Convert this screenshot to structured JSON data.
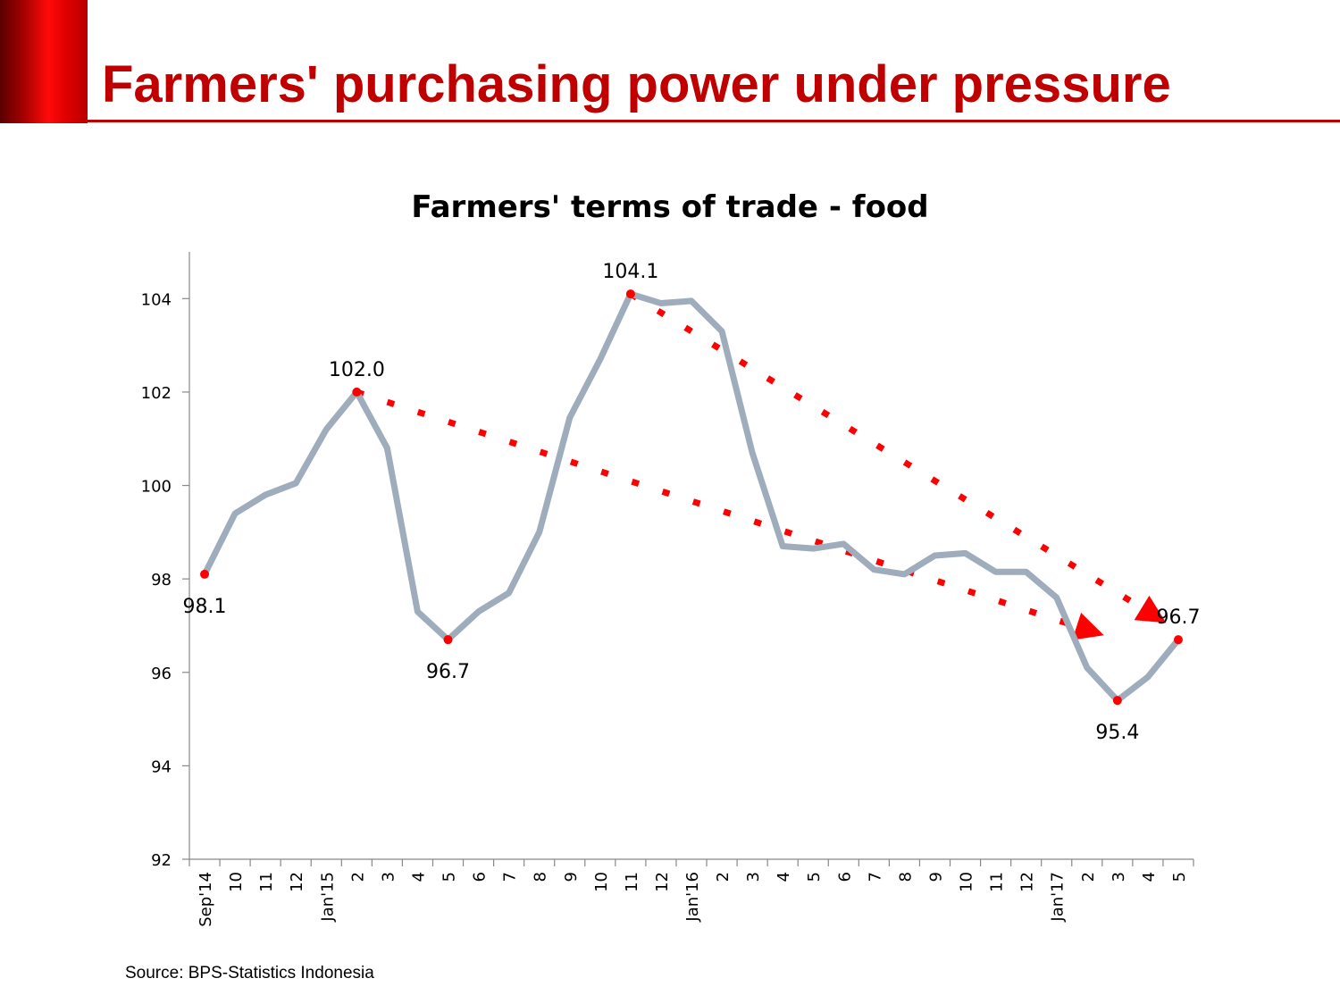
{
  "slide": {
    "title": "Farmers' purchasing power under pressure",
    "source": "Source: BPS-Statistics Indonesia",
    "accent_color": "#c00000"
  },
  "chart_data": {
    "type": "line",
    "title": "Farmers' terms of trade - food",
    "xlabel": "",
    "ylabel": "",
    "ylim": [
      92,
      105
    ],
    "yticks": [
      92,
      94,
      96,
      98,
      100,
      102,
      104
    ],
    "grid": false,
    "legend": "none",
    "categories": [
      "Sep'14",
      "10",
      "11",
      "12",
      "Jan'15",
      "2",
      "3",
      "4",
      "5",
      "6",
      "7",
      "8",
      "9",
      "10",
      "11",
      "12",
      "Jan'16",
      "2",
      "3",
      "4",
      "5",
      "6",
      "7",
      "8",
      "9",
      "10",
      "11",
      "12",
      "Jan'17",
      "2",
      "3",
      "4",
      "5"
    ],
    "series": [
      {
        "color": "#9eacbc",
        "values": [
          98.1,
          99.4,
          99.8,
          100.05,
          101.2,
          102.0,
          100.8,
          97.3,
          96.7,
          97.3,
          97.7,
          99.0,
          101.45,
          102.7,
          104.1,
          103.9,
          103.95,
          103.3,
          100.7,
          98.7,
          98.65,
          98.75,
          98.2,
          98.1,
          98.5,
          98.55,
          98.15,
          98.15,
          97.6,
          96.1,
          95.4,
          95.9,
          96.7
        ]
      }
    ],
    "data_labels": [
      {
        "index": 0,
        "text": "98.1",
        "position": "below"
      },
      {
        "index": 5,
        "text": "102.0",
        "position": "above"
      },
      {
        "index": 8,
        "text": "96.7",
        "position": "below"
      },
      {
        "index": 14,
        "text": "104.1",
        "position": "above"
      },
      {
        "index": 30,
        "text": "95.4",
        "position": "below"
      },
      {
        "index": 32,
        "text": "96.7",
        "position": "above"
      }
    ],
    "trend_lines": [
      {
        "from": [
          5,
          102.0
        ],
        "to": [
          30,
          96.7
        ],
        "color": "#ff0000",
        "style": "dotted",
        "arrow": true
      },
      {
        "from": [
          14,
          104.1
        ],
        "to": [
          32,
          96.9
        ],
        "color": "#ff0000",
        "style": "dotted",
        "arrow": true
      }
    ],
    "marker_color": "#ff0000"
  }
}
